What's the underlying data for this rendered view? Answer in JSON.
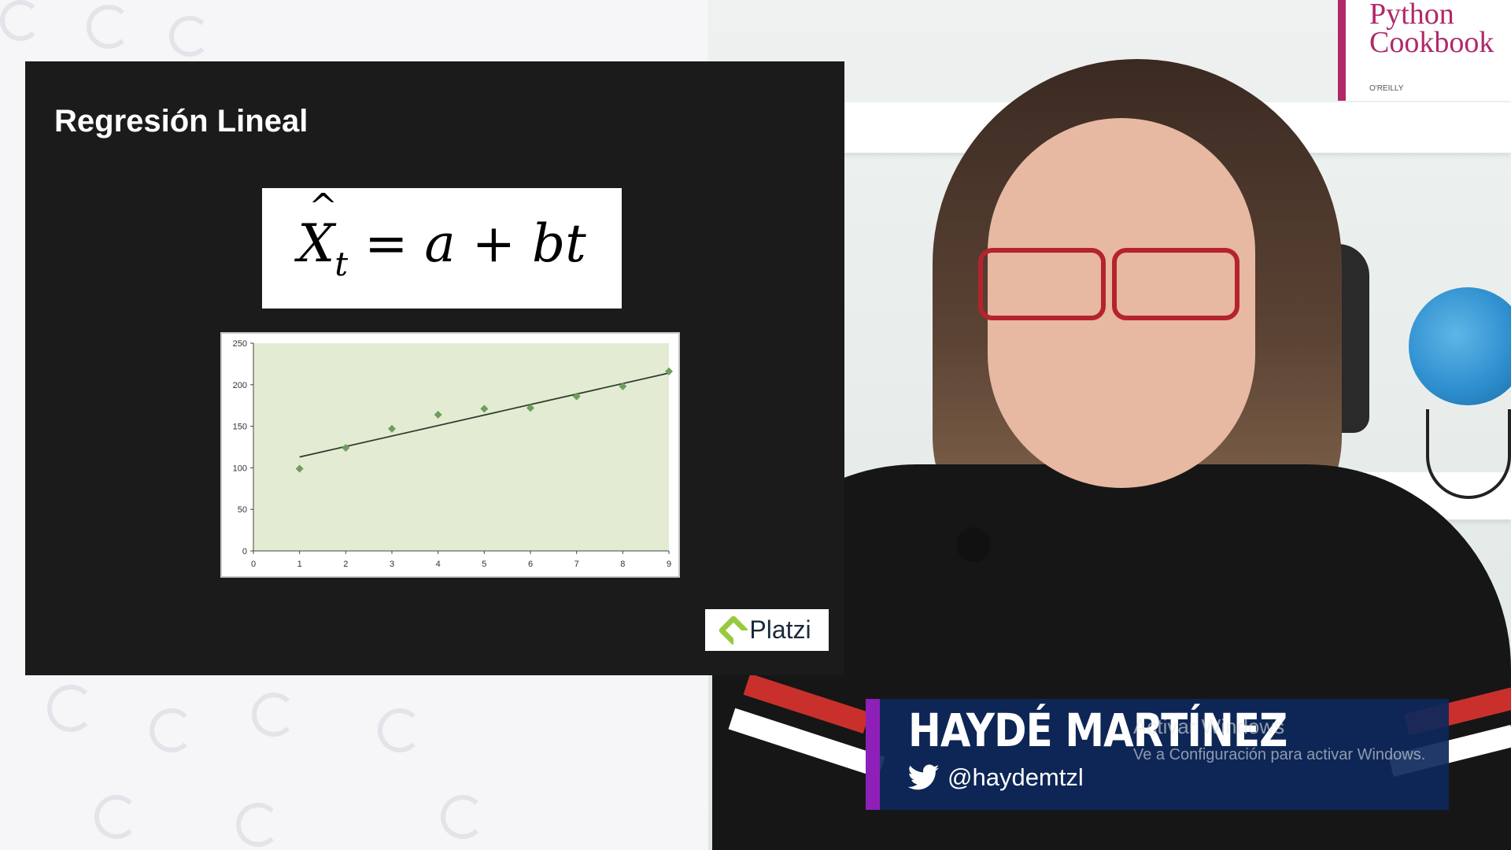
{
  "slide": {
    "title": "Regresión Lineal",
    "formula": {
      "lhs": "X",
      "lhs_subscript": "t",
      "rhs": "= a + bt"
    },
    "logo": {
      "icon": "platzi-logo-icon",
      "text": "Platzi"
    }
  },
  "chart_data": {
    "type": "scatter",
    "x": [
      1,
      2,
      3,
      4,
      5,
      6,
      7,
      8,
      9
    ],
    "y": [
      99,
      124,
      147,
      164,
      171,
      172,
      186,
      198,
      216
    ],
    "trendline": {
      "x": [
        1,
        9
      ],
      "y": [
        113,
        214
      ]
    },
    "xticks": [
      0,
      1,
      2,
      3,
      4,
      5,
      6,
      7,
      8,
      9
    ],
    "yticks": [
      0,
      50,
      100,
      150,
      200,
      250
    ],
    "xlim": [
      0,
      9
    ],
    "ylim": [
      0,
      250
    ],
    "title": "",
    "xlabel": "",
    "ylabel": "",
    "grid": false,
    "colors": {
      "plot_area": "#e3ecd3",
      "marker": "#6e9e5f",
      "trendline": "#2e3d2e"
    }
  },
  "presenter": {
    "name": "HAYDÉ MARTÍNEZ",
    "twitter_icon": "twitter-icon",
    "twitter_handle": "@haydemtzl",
    "accent_color": "#8e1fb8",
    "panel_color": "#0d285c"
  },
  "background": {
    "book_title_line1": "Python",
    "book_title_line2": "Cookbook",
    "book_publisher": "O'REILLY"
  },
  "watermark": {
    "line1": "Activar Windows",
    "line2": "Ve a Configuración para activar Windows."
  }
}
